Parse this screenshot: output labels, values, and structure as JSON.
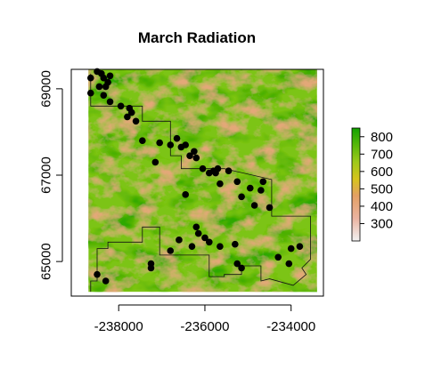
{
  "chart_data": {
    "type": "scatter",
    "title": "March Radiation",
    "xlabel": "",
    "ylabel": "",
    "x_ticks": [
      -238000,
      -236000,
      -234000
    ],
    "x_tick_labels": [
      "-238000",
      "-236000",
      "-234000"
    ],
    "y_ticks": [
      65000,
      67000,
      69000
    ],
    "y_tick_labels": [
      "65000",
      "67000",
      "69000"
    ],
    "xlim": [
      -239100,
      -233250
    ],
    "ylim": [
      64200,
      69450
    ],
    "legend": {
      "placement": "right",
      "ticks": [
        300,
        400,
        500,
        600,
        700,
        800
      ],
      "tick_labels": [
        "300",
        "400",
        "500",
        "600",
        "700",
        "800"
      ],
      "range": [
        200,
        850
      ],
      "colors": [
        "#f2f2f2",
        "#eab3a1",
        "#e3a064",
        "#d6c41c",
        "#9ec91a",
        "#57b80a",
        "#12a100"
      ]
    },
    "raster": {
      "extent_x": [
        -238700,
        -233400
      ],
      "extent_y": [
        64300,
        69500
      ]
    },
    "boundary": [
      [
        -238650,
        69350
      ],
      [
        -238650,
        68600
      ],
      [
        -237450,
        68600
      ],
      [
        -237450,
        68250
      ],
      [
        -236800,
        68250
      ],
      [
        -236800,
        67450
      ],
      [
        -236550,
        67450
      ],
      [
        -236550,
        67150
      ],
      [
        -235550,
        67150
      ],
      [
        -235550,
        67150
      ],
      [
        -234450,
        66900
      ],
      [
        -234450,
        66050
      ],
      [
        -233550,
        66050
      ],
      [
        -233550,
        65050
      ],
      [
        -233750,
        64850
      ],
      [
        -233650,
        64700
      ],
      [
        -233950,
        64450
      ],
      [
        -234500,
        64600
      ],
      [
        -234700,
        64550
      ],
      [
        -234700,
        64900
      ],
      [
        -235150,
        64900
      ],
      [
        -235150,
        64700
      ],
      [
        -235550,
        64700
      ],
      [
        -235550,
        64650
      ],
      [
        -235900,
        64650
      ],
      [
        -235900,
        65150
      ],
      [
        -237050,
        65150
      ],
      [
        -237050,
        65800
      ],
      [
        -237450,
        65800
      ],
      [
        -237450,
        65450
      ],
      [
        -238250,
        65450
      ],
      [
        -238250,
        65300
      ],
      [
        -238500,
        65300
      ],
      [
        -238500,
        64550
      ],
      [
        -238650,
        64550
      ],
      [
        -238650,
        64300
      ]
    ],
    "points": [
      [
        -238500,
        69400
      ],
      [
        -238650,
        69250
      ],
      [
        -238400,
        69350
      ],
      [
        -238200,
        69300
      ],
      [
        -238350,
        69250
      ],
      [
        -238250,
        69150
      ],
      [
        -238450,
        69050
      ],
      [
        -238300,
        69050
      ],
      [
        -238650,
        68900
      ],
      [
        -238350,
        68850
      ],
      [
        -238200,
        68700
      ],
      [
        -237950,
        68600
      ],
      [
        -237750,
        68550
      ],
      [
        -237700,
        68450
      ],
      [
        -237600,
        68250
      ],
      [
        -237800,
        68350
      ],
      [
        -237450,
        67800
      ],
      [
        -236650,
        67850
      ],
      [
        -237050,
        67750
      ],
      [
        -237150,
        67300
      ],
      [
        -236800,
        67700
      ],
      [
        -236450,
        67700
      ],
      [
        -236550,
        67650
      ],
      [
        -236250,
        67550
      ],
      [
        -236350,
        67450
      ],
      [
        -236200,
        67400
      ],
      [
        -236050,
        67150
      ],
      [
        -235700,
        67150
      ],
      [
        -235800,
        67100
      ],
      [
        -235450,
        67100
      ],
      [
        -235750,
        67050
      ],
      [
        -235900,
        67050
      ],
      [
        -235650,
        66800
      ],
      [
        -235250,
        66850
      ],
      [
        -236450,
        66550
      ],
      [
        -234650,
        66850
      ],
      [
        -234950,
        66700
      ],
      [
        -235150,
        66500
      ],
      [
        -234700,
        66650
      ],
      [
        -234850,
        66300
      ],
      [
        -234500,
        66250
      ],
      [
        -236200,
        65800
      ],
      [
        -236150,
        65650
      ],
      [
        -236000,
        65550
      ],
      [
        -235900,
        65450
      ],
      [
        -236600,
        65500
      ],
      [
        -236300,
        65350
      ],
      [
        -235650,
        65350
      ],
      [
        -236800,
        65250
      ],
      [
        -235300,
        65400
      ],
      [
        -234000,
        65300
      ],
      [
        -233800,
        65350
      ],
      [
        -234300,
        65100
      ],
      [
        -234050,
        64950
      ],
      [
        -237250,
        64950
      ],
      [
        -237250,
        64850
      ],
      [
        -238500,
        64700
      ],
      [
        -238300,
        64550
      ],
      [
        -235250,
        64950
      ],
      [
        -235150,
        64850
      ]
    ]
  }
}
